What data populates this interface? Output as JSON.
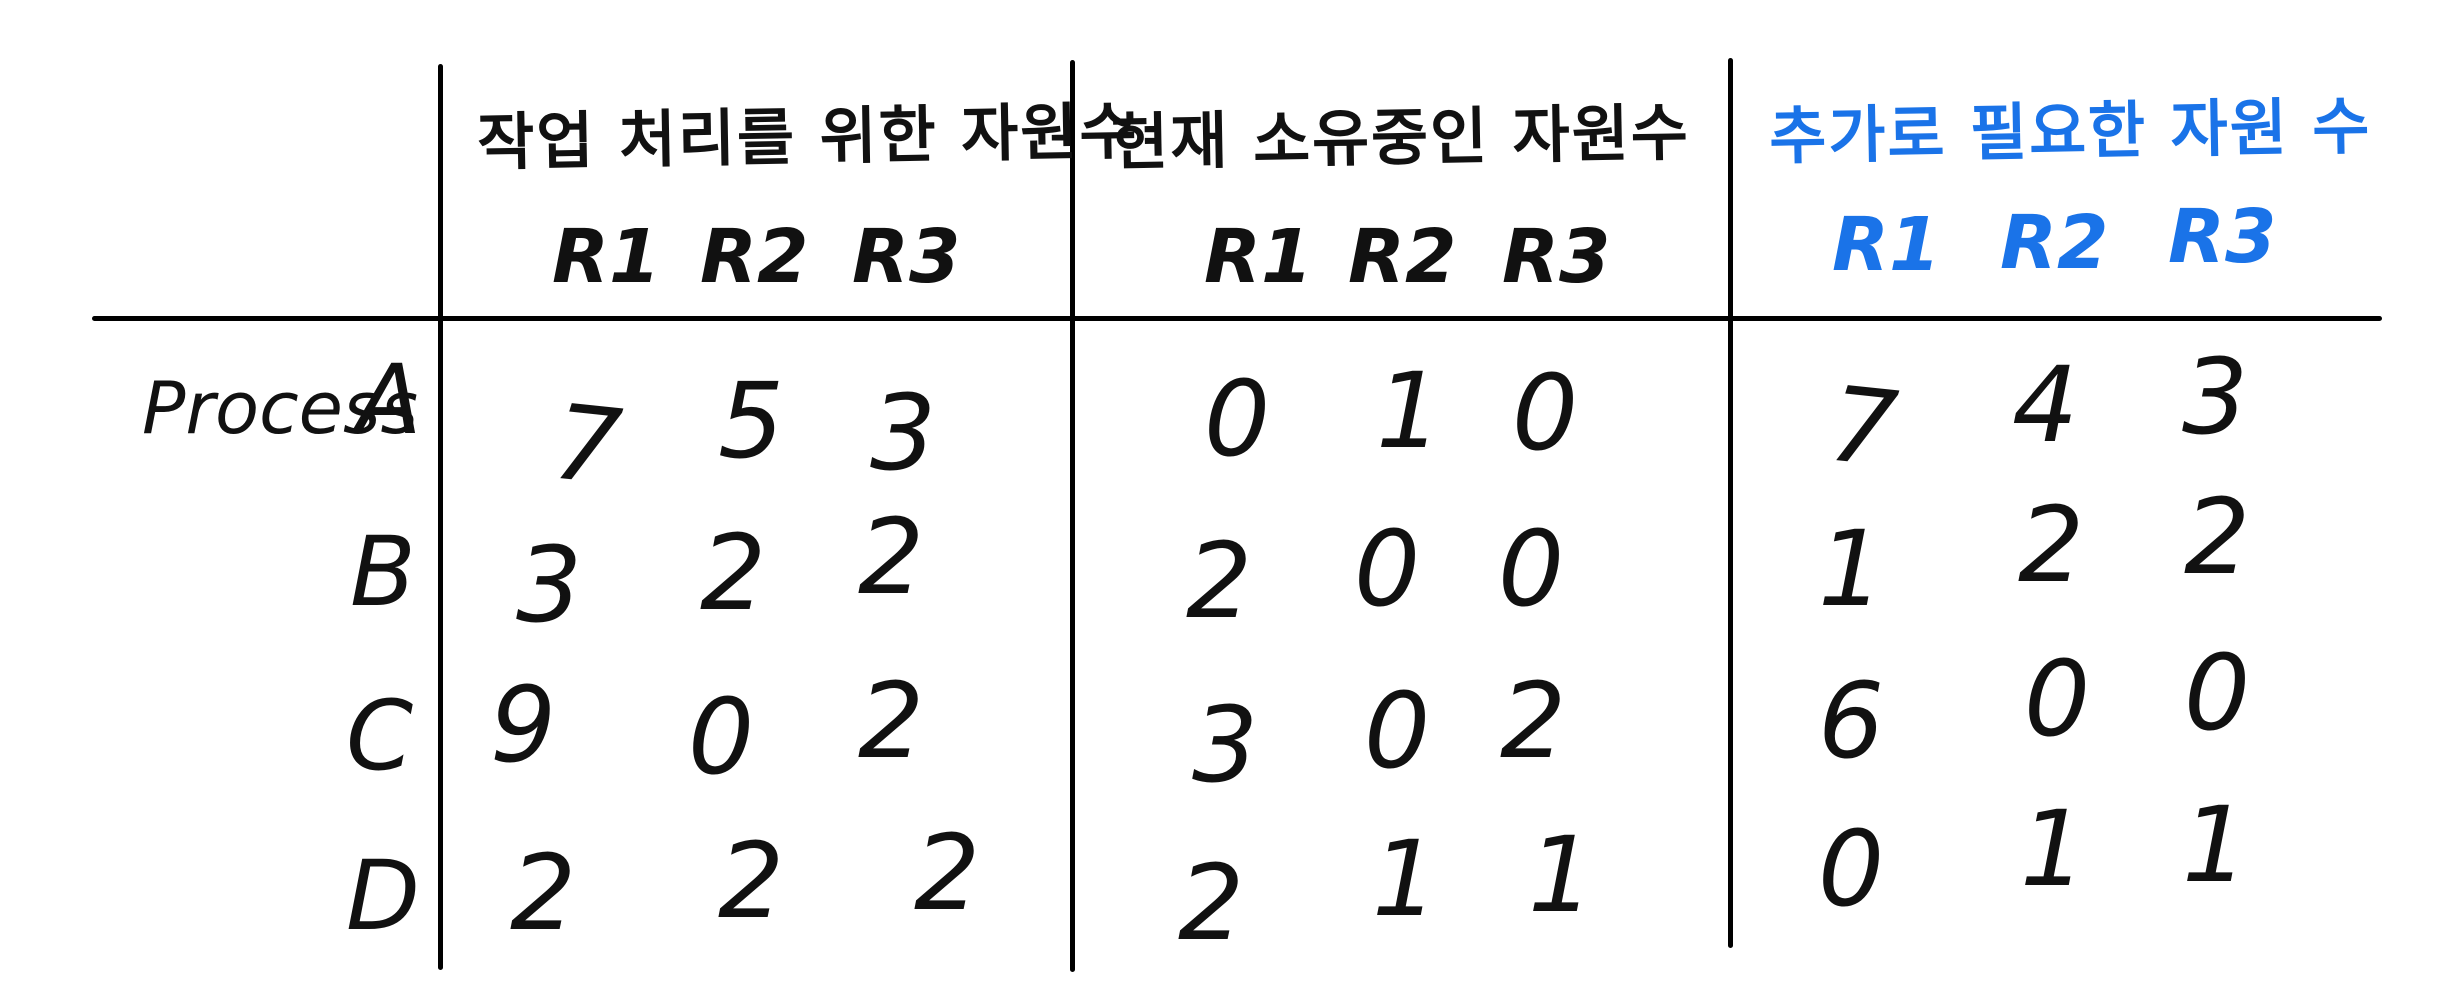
{
  "accent_color": "#1a73e8",
  "headers": {
    "max": "작업 처리를 위한 자원수",
    "allocation": "현재 소유중인 자원수",
    "need": "추가로 필요한 자원 수"
  },
  "resources": [
    "R1",
    "R2",
    "R3"
  ],
  "process_label": "Process",
  "rows": [
    {
      "label": "A",
      "max": [
        "7",
        "5",
        "3"
      ],
      "allocation": [
        "0",
        "1",
        "0"
      ],
      "need": [
        "7",
        "4",
        "3"
      ]
    },
    {
      "label": "B",
      "max": [
        "3",
        "2",
        "2"
      ],
      "allocation": [
        "2",
        "0",
        "0"
      ],
      "need": [
        "1",
        "2",
        "2"
      ]
    },
    {
      "label": "C",
      "max": [
        "9",
        "0",
        "2"
      ],
      "allocation": [
        "3",
        "0",
        "2"
      ],
      "need": [
        "6",
        "0",
        "0"
      ]
    },
    {
      "label": "D",
      "max": [
        "2",
        "2",
        "2"
      ],
      "allocation": [
        "2",
        "1",
        "1"
      ],
      "need": [
        "0",
        "1",
        "1"
      ]
    }
  ]
}
